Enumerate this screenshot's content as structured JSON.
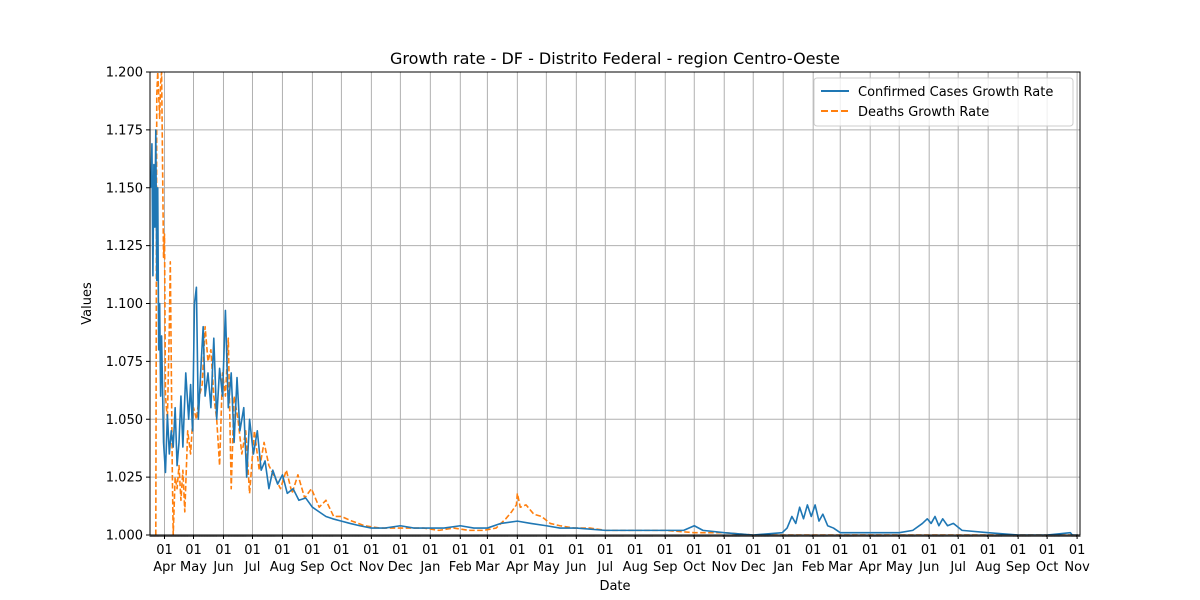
{
  "chart_data": {
    "type": "line",
    "title": "Growth rate - DF - Distrito Federal - region Centro-Oeste",
    "xlabel": "Date",
    "ylabel": "Values",
    "ylim": [
      1.0,
      1.2
    ],
    "xlim": [
      "2020-03-17",
      "2022-11-04"
    ],
    "grid": true,
    "legend_position": "upper right",
    "y_ticks": [
      "1.000",
      "1.025",
      "1.050",
      "1.075",
      "1.100",
      "1.125",
      "1.150",
      "1.175",
      "1.200"
    ],
    "x_ticks": [
      {
        "date": "2020-04-01",
        "day": "01",
        "month": "Apr"
      },
      {
        "date": "2020-05-01",
        "day": "01",
        "month": "May"
      },
      {
        "date": "2020-06-01",
        "day": "01",
        "month": "Jun"
      },
      {
        "date": "2020-07-01",
        "day": "01",
        "month": "Jul"
      },
      {
        "date": "2020-08-01",
        "day": "01",
        "month": "Aug"
      },
      {
        "date": "2020-09-01",
        "day": "01",
        "month": "Sep"
      },
      {
        "date": "2020-10-01",
        "day": "01",
        "month": "Oct"
      },
      {
        "date": "2020-11-01",
        "day": "01",
        "month": "Nov"
      },
      {
        "date": "2020-12-01",
        "day": "01",
        "month": "Dec"
      },
      {
        "date": "2021-01-01",
        "day": "01",
        "month": "Jan"
      },
      {
        "date": "2021-02-01",
        "day": "01",
        "month": "Feb"
      },
      {
        "date": "2021-03-01",
        "day": "01",
        "month": "Mar"
      },
      {
        "date": "2021-04-01",
        "day": "01",
        "month": "Apr"
      },
      {
        "date": "2021-05-01",
        "day": "01",
        "month": "May"
      },
      {
        "date": "2021-06-01",
        "day": "01",
        "month": "Jun"
      },
      {
        "date": "2021-07-01",
        "day": "01",
        "month": "Jul"
      },
      {
        "date": "2021-08-01",
        "day": "01",
        "month": "Aug"
      },
      {
        "date": "2021-09-01",
        "day": "01",
        "month": "Sep"
      },
      {
        "date": "2021-10-01",
        "day": "01",
        "month": "Oct"
      },
      {
        "date": "2021-11-01",
        "day": "01",
        "month": "Nov"
      },
      {
        "date": "2021-12-01",
        "day": "01",
        "month": "Dec"
      },
      {
        "date": "2022-01-01",
        "day": "01",
        "month": "Jan"
      },
      {
        "date": "2022-02-01",
        "day": "01",
        "month": "Feb"
      },
      {
        "date": "2022-03-01",
        "day": "01",
        "month": "Mar"
      },
      {
        "date": "2022-04-01",
        "day": "01",
        "month": "Apr"
      },
      {
        "date": "2022-05-01",
        "day": "01",
        "month": "May"
      },
      {
        "date": "2022-06-01",
        "day": "01",
        "month": "Jun"
      },
      {
        "date": "2022-07-01",
        "day": "01",
        "month": "Jul"
      },
      {
        "date": "2022-08-01",
        "day": "01",
        "month": "Aug"
      },
      {
        "date": "2022-09-01",
        "day": "01",
        "month": "Sep"
      },
      {
        "date": "2022-10-01",
        "day": "01",
        "month": "Oct"
      },
      {
        "date": "2022-11-01",
        "day": "01",
        "month": "Nov"
      }
    ],
    "series": [
      {
        "name": "Confirmed Cases Growth Rate",
        "color": "#1f77b4",
        "style": "solid",
        "points": [
          [
            "2020-03-18",
            1.15
          ],
          [
            "2020-03-19",
            1.169
          ],
          [
            "2020-03-20",
            1.112
          ],
          [
            "2020-03-21",
            1.16
          ],
          [
            "2020-03-22",
            1.133
          ],
          [
            "2020-03-23",
            1.175
          ],
          [
            "2020-03-24",
            1.11
          ],
          [
            "2020-03-25",
            1.15
          ],
          [
            "2020-03-26",
            1.08
          ],
          [
            "2020-03-27",
            1.1
          ],
          [
            "2020-03-28",
            1.06
          ],
          [
            "2020-03-29",
            1.086
          ],
          [
            "2020-03-31",
            1.04
          ],
          [
            "2020-04-02",
            1.027
          ],
          [
            "2020-04-04",
            1.052
          ],
          [
            "2020-04-06",
            1.035
          ],
          [
            "2020-04-08",
            1.045
          ],
          [
            "2020-04-10",
            1.038
          ],
          [
            "2020-04-12",
            1.055
          ],
          [
            "2020-04-14",
            1.03
          ],
          [
            "2020-04-16",
            1.04
          ],
          [
            "2020-04-18",
            1.06
          ],
          [
            "2020-04-20",
            1.038
          ],
          [
            "2020-04-23",
            1.07
          ],
          [
            "2020-04-26",
            1.05
          ],
          [
            "2020-04-28",
            1.065
          ],
          [
            "2020-04-30",
            1.045
          ],
          [
            "2020-05-02",
            1.1
          ],
          [
            "2020-05-04",
            1.107
          ],
          [
            "2020-05-06",
            1.05
          ],
          [
            "2020-05-09",
            1.075
          ],
          [
            "2020-05-11",
            1.09
          ],
          [
            "2020-05-13",
            1.06
          ],
          [
            "2020-05-16",
            1.07
          ],
          [
            "2020-05-19",
            1.055
          ],
          [
            "2020-05-22",
            1.085
          ],
          [
            "2020-05-25",
            1.05
          ],
          [
            "2020-05-28",
            1.072
          ],
          [
            "2020-05-31",
            1.06
          ],
          [
            "2020-06-03",
            1.097
          ],
          [
            "2020-06-06",
            1.055
          ],
          [
            "2020-06-09",
            1.07
          ],
          [
            "2020-06-12",
            1.04
          ],
          [
            "2020-06-15",
            1.068
          ],
          [
            "2020-06-18",
            1.045
          ],
          [
            "2020-06-22",
            1.055
          ],
          [
            "2020-06-25",
            1.025
          ],
          [
            "2020-06-28",
            1.05
          ],
          [
            "2020-07-02",
            1.035
          ],
          [
            "2020-07-06",
            1.045
          ],
          [
            "2020-07-10",
            1.028
          ],
          [
            "2020-07-14",
            1.032
          ],
          [
            "2020-07-18",
            1.02
          ],
          [
            "2020-07-22",
            1.028
          ],
          [
            "2020-07-27",
            1.022
          ],
          [
            "2020-08-01",
            1.026
          ],
          [
            "2020-08-06",
            1.018
          ],
          [
            "2020-08-12",
            1.02
          ],
          [
            "2020-08-18",
            1.015
          ],
          [
            "2020-08-25",
            1.016
          ],
          [
            "2020-09-01",
            1.012
          ],
          [
            "2020-09-08",
            1.01
          ],
          [
            "2020-09-15",
            1.008
          ],
          [
            "2020-09-22",
            1.007
          ],
          [
            "2020-10-01",
            1.006
          ],
          [
            "2020-10-10",
            1.005
          ],
          [
            "2020-10-20",
            1.004
          ],
          [
            "2020-11-01",
            1.003
          ],
          [
            "2020-11-15",
            1.003
          ],
          [
            "2020-12-01",
            1.004
          ],
          [
            "2020-12-15",
            1.003
          ],
          [
            "2021-01-01",
            1.003
          ],
          [
            "2021-01-15",
            1.003
          ],
          [
            "2021-02-01",
            1.004
          ],
          [
            "2021-02-15",
            1.003
          ],
          [
            "2021-03-01",
            1.003
          ],
          [
            "2021-03-15",
            1.005
          ],
          [
            "2021-04-01",
            1.006
          ],
          [
            "2021-04-15",
            1.005
          ],
          [
            "2021-05-01",
            1.004
          ],
          [
            "2021-05-15",
            1.003
          ],
          [
            "2021-06-01",
            1.003
          ],
          [
            "2021-07-01",
            1.002
          ],
          [
            "2021-08-01",
            1.002
          ],
          [
            "2021-09-01",
            1.002
          ],
          [
            "2021-09-20",
            1.002
          ],
          [
            "2021-10-01",
            1.004
          ],
          [
            "2021-10-10",
            1.002
          ],
          [
            "2021-11-01",
            1.001
          ],
          [
            "2021-12-01",
            1.0
          ],
          [
            "2021-12-31",
            1.001
          ],
          [
            "2022-01-05",
            1.003
          ],
          [
            "2022-01-10",
            1.008
          ],
          [
            "2022-01-14",
            1.005
          ],
          [
            "2022-01-18",
            1.012
          ],
          [
            "2022-01-22",
            1.007
          ],
          [
            "2022-01-26",
            1.013
          ],
          [
            "2022-01-30",
            1.008
          ],
          [
            "2022-02-03",
            1.013
          ],
          [
            "2022-02-07",
            1.006
          ],
          [
            "2022-02-11",
            1.009
          ],
          [
            "2022-02-16",
            1.004
          ],
          [
            "2022-02-22",
            1.003
          ],
          [
            "2022-03-01",
            1.001
          ],
          [
            "2022-04-01",
            1.001
          ],
          [
            "2022-05-01",
            1.001
          ],
          [
            "2022-05-15",
            1.002
          ],
          [
            "2022-05-25",
            1.005
          ],
          [
            "2022-05-30",
            1.007
          ],
          [
            "2022-06-03",
            1.005
          ],
          [
            "2022-06-07",
            1.008
          ],
          [
            "2022-06-11",
            1.004
          ],
          [
            "2022-06-15",
            1.007
          ],
          [
            "2022-06-20",
            1.004
          ],
          [
            "2022-06-26",
            1.005
          ],
          [
            "2022-07-05",
            1.002
          ],
          [
            "2022-08-01",
            1.001
          ],
          [
            "2022-09-01",
            1.0
          ],
          [
            "2022-10-01",
            1.0
          ],
          [
            "2022-10-25",
            1.001
          ],
          [
            "2022-10-27",
            1.0
          ],
          [
            "2022-11-02",
            1.0
          ]
        ]
      },
      {
        "name": "Deaths Growth Rate",
        "color": "#ff7f0e",
        "style": "dashed",
        "points": [
          [
            "2020-03-23",
            1.0
          ],
          [
            "2020-03-24",
            1.19
          ],
          [
            "2020-03-25",
            1.2
          ],
          [
            "2020-03-27",
            1.18
          ],
          [
            "2020-03-28",
            1.195
          ],
          [
            "2020-03-29",
            1.2
          ],
          [
            "2020-03-31",
            1.12
          ],
          [
            "2020-04-01",
            1.13
          ],
          [
            "2020-04-02",
            1.06
          ],
          [
            "2020-04-04",
            1.05
          ],
          [
            "2020-04-06",
            1.09
          ],
          [
            "2020-04-07",
            1.118
          ],
          [
            "2020-04-09",
            1.03
          ],
          [
            "2020-04-10",
            1.0
          ],
          [
            "2020-04-12",
            1.025
          ],
          [
            "2020-04-14",
            1.02
          ],
          [
            "2020-04-16",
            1.03
          ],
          [
            "2020-04-18",
            1.015
          ],
          [
            "2020-04-20",
            1.028
          ],
          [
            "2020-04-22",
            1.01
          ],
          [
            "2020-04-25",
            1.045
          ],
          [
            "2020-04-28",
            1.035
          ],
          [
            "2020-05-01",
            1.055
          ],
          [
            "2020-05-04",
            1.05
          ],
          [
            "2020-05-07",
            1.06
          ],
          [
            "2020-05-10",
            1.065
          ],
          [
            "2020-05-13",
            1.09
          ],
          [
            "2020-05-16",
            1.075
          ],
          [
            "2020-05-19",
            1.08
          ],
          [
            "2020-05-22",
            1.06
          ],
          [
            "2020-05-25",
            1.05
          ],
          [
            "2020-05-28",
            1.03
          ],
          [
            "2020-05-31",
            1.07
          ],
          [
            "2020-06-03",
            1.06
          ],
          [
            "2020-06-06",
            1.085
          ],
          [
            "2020-06-09",
            1.02
          ],
          [
            "2020-06-12",
            1.06
          ],
          [
            "2020-06-16",
            1.05
          ],
          [
            "2020-06-20",
            1.035
          ],
          [
            "2020-06-24",
            1.045
          ],
          [
            "2020-06-28",
            1.018
          ],
          [
            "2020-07-03",
            1.045
          ],
          [
            "2020-07-08",
            1.028
          ],
          [
            "2020-07-13",
            1.04
          ],
          [
            "2020-07-18",
            1.03
          ],
          [
            "2020-07-24",
            1.025
          ],
          [
            "2020-07-30",
            1.02
          ],
          [
            "2020-08-05",
            1.028
          ],
          [
            "2020-08-11",
            1.018
          ],
          [
            "2020-08-17",
            1.026
          ],
          [
            "2020-08-24",
            1.016
          ],
          [
            "2020-08-31",
            1.02
          ],
          [
            "2020-09-08",
            1.012
          ],
          [
            "2020-09-15",
            1.015
          ],
          [
            "2020-09-23",
            1.008
          ],
          [
            "2020-10-01",
            1.008
          ],
          [
            "2020-10-12",
            1.006
          ],
          [
            "2020-10-25",
            1.004
          ],
          [
            "2020-11-10",
            1.003
          ],
          [
            "2020-11-25",
            1.003
          ],
          [
            "2020-12-10",
            1.003
          ],
          [
            "2020-12-25",
            1.003
          ],
          [
            "2021-01-10",
            1.002
          ],
          [
            "2021-01-25",
            1.003
          ],
          [
            "2021-02-10",
            1.002
          ],
          [
            "2021-02-25",
            1.002
          ],
          [
            "2021-03-10",
            1.003
          ],
          [
            "2021-03-20",
            1.007
          ],
          [
            "2021-03-26",
            1.01
          ],
          [
            "2021-03-31",
            1.013
          ],
          [
            "2021-04-01",
            1.018
          ],
          [
            "2021-04-04",
            1.012
          ],
          [
            "2021-04-10",
            1.013
          ],
          [
            "2021-04-18",
            1.009
          ],
          [
            "2021-04-26",
            1.008
          ],
          [
            "2021-05-05",
            1.005
          ],
          [
            "2021-05-15",
            1.004
          ],
          [
            "2021-05-30",
            1.003
          ],
          [
            "2021-06-15",
            1.003
          ],
          [
            "2021-07-01",
            1.002
          ],
          [
            "2021-08-01",
            1.002
          ],
          [
            "2021-09-01",
            1.002
          ],
          [
            "2021-10-01",
            1.001
          ],
          [
            "2021-11-01",
            1.001
          ],
          [
            "2021-12-01",
            1.0
          ],
          [
            "2022-01-01",
            1.0
          ],
          [
            "2022-02-01",
            1.0
          ],
          [
            "2022-03-01",
            1.0
          ],
          [
            "2022-04-01",
            1.0
          ],
          [
            "2022-05-01",
            1.0
          ],
          [
            "2022-06-01",
            1.0
          ],
          [
            "2022-07-01",
            1.0
          ],
          [
            "2022-08-01",
            1.0
          ],
          [
            "2022-09-01",
            1.0
          ],
          [
            "2022-10-01",
            1.0
          ],
          [
            "2022-11-02",
            1.0
          ]
        ]
      }
    ]
  }
}
